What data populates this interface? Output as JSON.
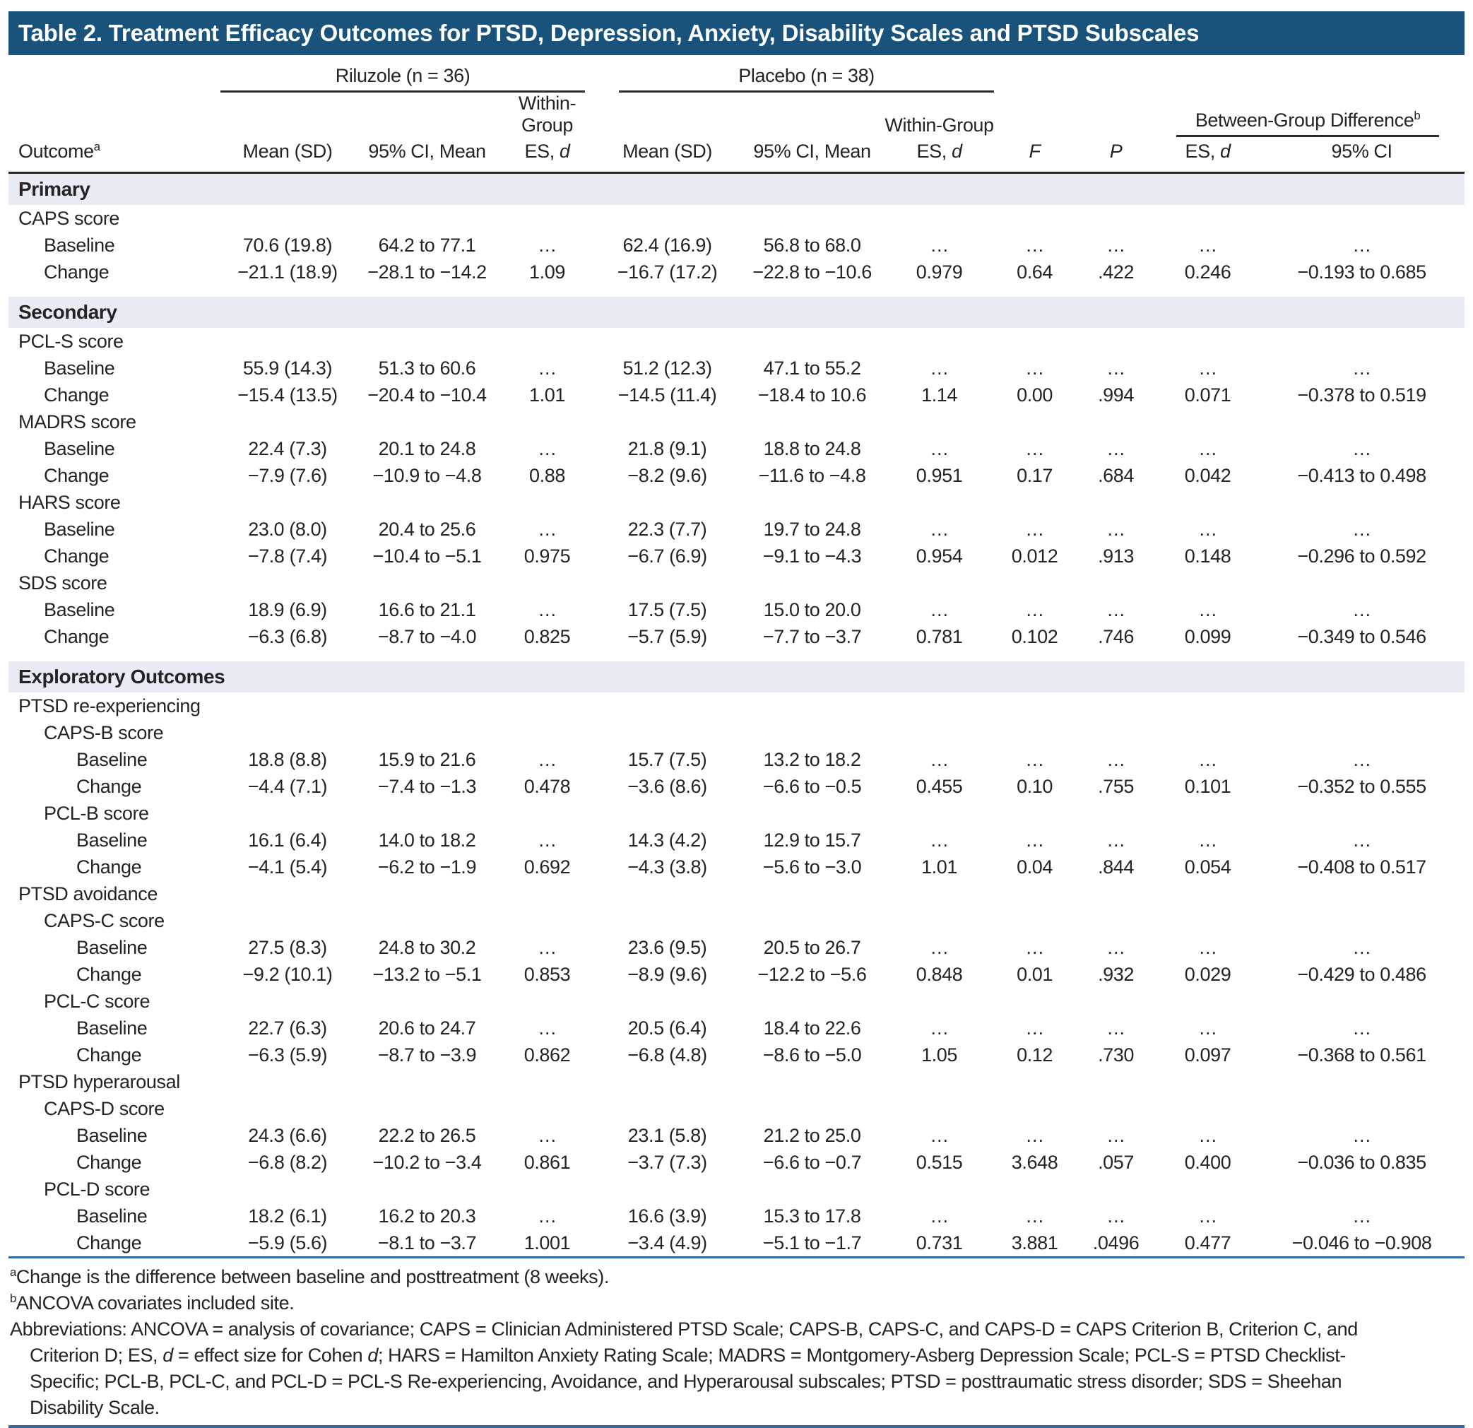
{
  "title": "Table 2. Treatment Efficacy Outcomes for PTSD, Depression, Anxiety, Disability Scales and PTSD Subscales",
  "colors": {
    "title_bar_bg": "#19537b",
    "section_band_bg": "#e9ecf5",
    "rule_dark": "#2b2a29",
    "rule_blue": "#2e6ba6",
    "text": "#272324"
  },
  "header": {
    "group_riluzole": "Riluzole (n = 36)",
    "group_placebo": "Placebo (n = 38)",
    "within_group": "Within-Group",
    "between_group": [
      {
        "text": "Between-Group Difference"
      },
      {
        "text": "b",
        "style": "sup"
      }
    ],
    "col_outcome": [
      {
        "text": "Outcome"
      },
      {
        "text": "a",
        "style": "sup"
      }
    ],
    "col_mean_sd": "Mean (SD)",
    "col_ci_mean": "95% CI, Mean",
    "col_es_d": [
      {
        "text": "ES, "
      },
      {
        "text": "d",
        "style": "italic"
      }
    ],
    "col_f": "F",
    "col_p": "P",
    "col_ci95": "95% CI"
  },
  "rows": [
    {
      "type": "section",
      "label": "Primary"
    },
    {
      "type": "label",
      "indent": 0,
      "label": "CAPS score"
    },
    {
      "type": "data",
      "indent": 1,
      "label": "Baseline",
      "values": [
        "70.6 (19.8)",
        "64.2 to 77.1",
        "…",
        "62.4 (16.9)",
        "56.8 to 68.0",
        "…",
        "…",
        "…",
        "…",
        "…"
      ]
    },
    {
      "type": "data",
      "indent": 1,
      "label": "Change",
      "values": [
        "−21.1 (18.9)",
        "−28.1 to −14.2",
        "1.09",
        "−16.7 (17.2)",
        "−22.8 to −10.6",
        "0.979",
        "0.64",
        ".422",
        "0.246",
        "−0.193 to 0.685"
      ]
    },
    {
      "type": "section",
      "label": "Secondary"
    },
    {
      "type": "label",
      "indent": 0,
      "label": "PCL-S score"
    },
    {
      "type": "data",
      "indent": 1,
      "label": "Baseline",
      "values": [
        "55.9 (14.3)",
        "51.3 to 60.6",
        "…",
        "51.2 (12.3)",
        "47.1 to 55.2",
        "…",
        "…",
        "…",
        "…",
        "…"
      ]
    },
    {
      "type": "data",
      "indent": 1,
      "label": "Change",
      "values": [
        "−15.4 (13.5)",
        "−20.4 to −10.4",
        "1.01",
        "−14.5 (11.4)",
        "−18.4 to 10.6",
        "1.14",
        "0.00",
        ".994",
        "0.071",
        "−0.378 to 0.519"
      ]
    },
    {
      "type": "label",
      "indent": 0,
      "label": "MADRS score"
    },
    {
      "type": "data",
      "indent": 1,
      "label": "Baseline",
      "values": [
        "22.4 (7.3)",
        "20.1 to 24.8",
        "…",
        "21.8 (9.1)",
        "18.8 to 24.8",
        "…",
        "…",
        "…",
        "…",
        "…"
      ]
    },
    {
      "type": "data",
      "indent": 1,
      "label": "Change",
      "values": [
        "−7.9 (7.6)",
        "−10.9 to −4.8",
        "0.88",
        "−8.2 (9.6)",
        "−11.6 to −4.8",
        "0.951",
        "0.17",
        ".684",
        "0.042",
        "−0.413 to 0.498"
      ]
    },
    {
      "type": "label",
      "indent": 0,
      "label": "HARS score"
    },
    {
      "type": "data",
      "indent": 1,
      "label": "Baseline",
      "values": [
        "23.0 (8.0)",
        "20.4 to 25.6",
        "…",
        "22.3 (7.7)",
        "19.7 to 24.8",
        "…",
        "…",
        "…",
        "…",
        "…"
      ]
    },
    {
      "type": "data",
      "indent": 1,
      "label": "Change",
      "values": [
        "−7.8 (7.4)",
        "−10.4 to −5.1",
        "0.975",
        "−6.7 (6.9)",
        "−9.1 to −4.3",
        "0.954",
        "0.012",
        ".913",
        "0.148",
        "−0.296 to 0.592"
      ]
    },
    {
      "type": "label",
      "indent": 0,
      "label": "SDS score"
    },
    {
      "type": "data",
      "indent": 1,
      "label": "Baseline",
      "values": [
        "18.9 (6.9)",
        "16.6 to 21.1",
        "…",
        "17.5 (7.5)",
        "15.0 to 20.0",
        "…",
        "…",
        "…",
        "…",
        "…"
      ]
    },
    {
      "type": "data",
      "indent": 1,
      "label": "Change",
      "values": [
        "−6.3 (6.8)",
        "−8.7 to −4.0",
        "0.825",
        "−5.7 (5.9)",
        "−7.7 to −3.7",
        "0.781",
        "0.102",
        ".746",
        "0.099",
        "−0.349 to 0.546"
      ]
    },
    {
      "type": "section",
      "label": "Exploratory Outcomes"
    },
    {
      "type": "label",
      "indent": 0,
      "label": "PTSD re-experiencing"
    },
    {
      "type": "label",
      "indent": 1,
      "label": "CAPS-B score"
    },
    {
      "type": "data",
      "indent": 2,
      "label": "Baseline",
      "values": [
        "18.8 (8.8)",
        "15.9 to 21.6",
        "…",
        "15.7 (7.5)",
        "13.2 to 18.2",
        "…",
        "…",
        "…",
        "…",
        "…"
      ]
    },
    {
      "type": "data",
      "indent": 2,
      "label": "Change",
      "values": [
        "−4.4 (7.1)",
        "−7.4 to −1.3",
        "0.478",
        "−3.6 (8.6)",
        "−6.6 to −0.5",
        "0.455",
        "0.10",
        ".755",
        "0.101",
        "−0.352 to 0.555"
      ]
    },
    {
      "type": "label",
      "indent": 1,
      "label": "PCL-B score"
    },
    {
      "type": "data",
      "indent": 2,
      "label": "Baseline",
      "values": [
        "16.1 (6.4)",
        "14.0 to 18.2",
        "…",
        "14.3 (4.2)",
        "12.9 to 15.7",
        "…",
        "…",
        "…",
        "…",
        "…"
      ]
    },
    {
      "type": "data",
      "indent": 2,
      "label": "Change",
      "values": [
        "−4.1 (5.4)",
        "−6.2 to −1.9",
        "0.692",
        "−4.3 (3.8)",
        "−5.6 to −3.0",
        "1.01",
        "0.04",
        ".844",
        "0.054",
        "−0.408 to 0.517"
      ]
    },
    {
      "type": "label",
      "indent": 0,
      "label": "PTSD avoidance"
    },
    {
      "type": "label",
      "indent": 1,
      "label": "CAPS-C score"
    },
    {
      "type": "data",
      "indent": 2,
      "label": "Baseline",
      "values": [
        "27.5 (8.3)",
        "24.8 to 30.2",
        "…",
        "23.6 (9.5)",
        "20.5 to 26.7",
        "…",
        "…",
        "…",
        "…",
        "…"
      ]
    },
    {
      "type": "data",
      "indent": 2,
      "label": "Change",
      "values": [
        "−9.2 (10.1)",
        "−13.2 to −5.1",
        "0.853",
        "−8.9 (9.6)",
        "−12.2 to −5.6",
        "0.848",
        "0.01",
        ".932",
        "0.029",
        "−0.429 to 0.486"
      ]
    },
    {
      "type": "label",
      "indent": 1,
      "label": "PCL-C score"
    },
    {
      "type": "data",
      "indent": 2,
      "label": "Baseline",
      "values": [
        "22.7 (6.3)",
        "20.6 to 24.7",
        "…",
        "20.5 (6.4)",
        "18.4 to 22.6",
        "…",
        "…",
        "…",
        "…",
        "…"
      ]
    },
    {
      "type": "data",
      "indent": 2,
      "label": "Change",
      "values": [
        "−6.3 (5.9)",
        "−8.7 to −3.9",
        "0.862",
        "−6.8 (4.8)",
        "−8.6 to −5.0",
        "1.05",
        "0.12",
        ".730",
        "0.097",
        "−0.368 to 0.561"
      ]
    },
    {
      "type": "label",
      "indent": 0,
      "label": "PTSD hyperarousal"
    },
    {
      "type": "label",
      "indent": 1,
      "label": "CAPS-D score"
    },
    {
      "type": "data",
      "indent": 2,
      "label": "Baseline",
      "values": [
        "24.3 (6.6)",
        "22.2 to 26.5",
        "…",
        "23.1 (5.8)",
        "21.2 to 25.0",
        "…",
        "…",
        "…",
        "…",
        "…"
      ]
    },
    {
      "type": "data",
      "indent": 2,
      "label": "Change",
      "values": [
        "−6.8 (8.2)",
        "−10.2 to −3.4",
        "0.861",
        "−3.7 (7.3)",
        "−6.6 to −0.7",
        "0.515",
        "3.648",
        ".057",
        "0.400",
        "−0.036 to 0.835"
      ]
    },
    {
      "type": "label",
      "indent": 1,
      "label": "PCL-D score"
    },
    {
      "type": "data",
      "indent": 2,
      "label": "Baseline",
      "values": [
        "18.2 (6.1)",
        "16.2 to 20.3",
        "…",
        "16.6 (3.9)",
        "15.3 to 17.8",
        "…",
        "…",
        "…",
        "…",
        "…"
      ]
    },
    {
      "type": "data",
      "indent": 2,
      "label": "Change",
      "values": [
        "−5.9 (5.6)",
        "−8.1 to −3.7",
        "1.001",
        "−3.4 (4.9)",
        "−5.1 to −1.7",
        "0.731",
        "3.881",
        ".0496",
        "0.477",
        "−0.046 to −0.908"
      ]
    }
  ],
  "footnotes": {
    "line_a": [
      {
        "text": "a",
        "style": "sup"
      },
      {
        "text": "Change is the difference between baseline and posttreatment (8 weeks)."
      }
    ],
    "line_b": [
      {
        "text": "b",
        "style": "sup"
      },
      {
        "text": "ANCOVA covariates included site."
      }
    ],
    "abbrev_lines": [
      [
        {
          "text": "Abbreviations: ANCOVA = analysis of covariance; CAPS = Clinician Administered PTSD Scale; CAPS-B, CAPS-C, and CAPS-D = CAPS Criterion B, Criterion C, and"
        }
      ],
      [
        {
          "text": "Criterion D; ES, "
        },
        {
          "text": "d",
          "style": "italic"
        },
        {
          "text": " = effect size for Cohen "
        },
        {
          "text": "d",
          "style": "italic"
        },
        {
          "text": "; HARS = Hamilton Anxiety Rating Scale; MADRS = Montgomery-Asberg Depression Scale; PCL-S = PTSD Checklist-"
        }
      ],
      [
        {
          "text": "Specific; PCL-B, PCL-C, and PCL-D = PCL-S Re-experiencing, Avoidance, and Hyperarousal subscales; PTSD = posttraumatic stress disorder; SDS = Sheehan"
        }
      ],
      [
        {
          "text": "Disability Scale."
        }
      ]
    ]
  }
}
